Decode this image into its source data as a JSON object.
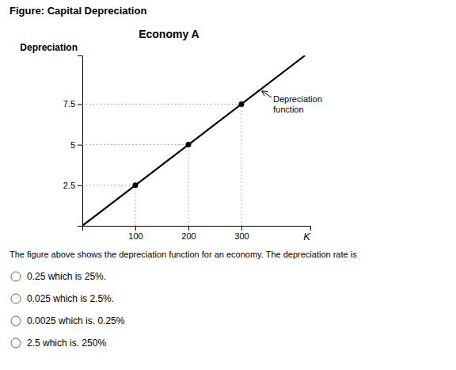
{
  "chart_data": {
    "type": "line",
    "figure_title": "Figure: Capital Depreciation",
    "title": "Economy A",
    "ylabel": "Depreciation",
    "xlabel": "K",
    "annotation": "Depreciation\nfunction",
    "caption": "The figure above shows the depreciation function for an economy. The depreciation rate is",
    "options": [
      "0.25 which is 25%.",
      "0.025 which is 2.5%.",
      "0.0025 which is. 0.25%",
      "2.5 which is. 250%"
    ],
    "series": [
      {
        "type": "line",
        "x": [
          0,
          420
        ],
        "values": [
          0,
          10.5
        ],
        "color": "#000000",
        "line_style": "solid"
      },
      {
        "type": "scatter",
        "x": [
          100,
          200,
          300
        ],
        "values": [
          2.5,
          5.0,
          7.5
        ],
        "color": "#000000",
        "marker": "circle"
      }
    ],
    "xlim": [
      0,
      430
    ],
    "ylim": [
      0,
      10.5
    ],
    "xticks": [
      100,
      200,
      300
    ],
    "yticks": [
      2.5,
      5,
      7.5
    ],
    "grid": false
  }
}
